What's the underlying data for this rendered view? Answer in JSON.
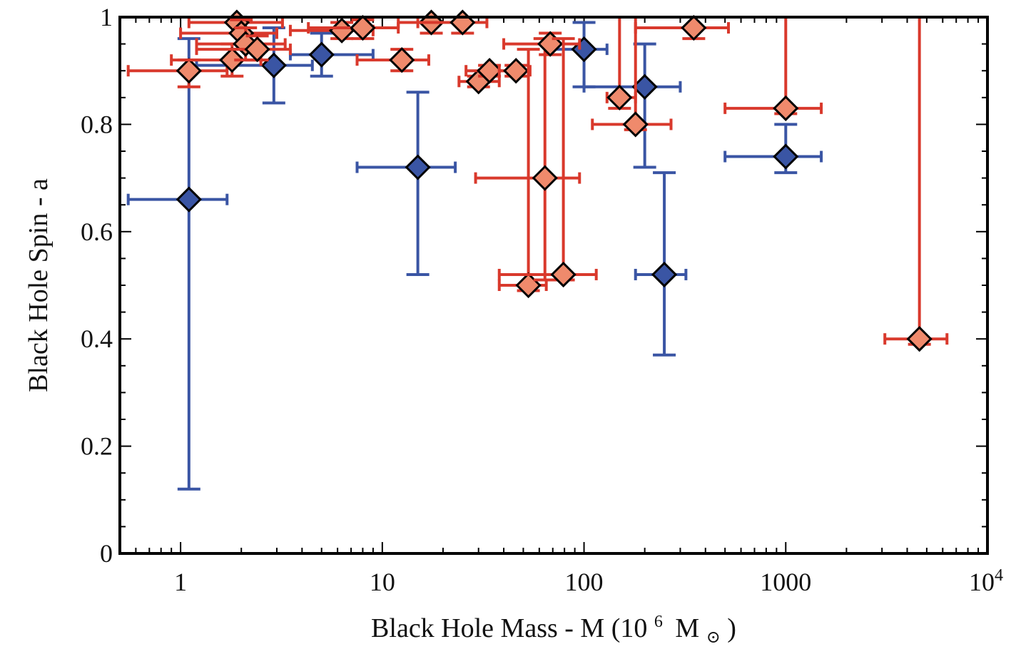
{
  "chart_data": {
    "type": "scatter",
    "title": "",
    "xlabel": "Black Hole Mass - M (10",
    "xlabel_sup": "6",
    "xlabel_unit": "M",
    "xlabel_sun": "⊙",
    "xlabel_close": ")",
    "ylabel": "Black Hole Spin - a",
    "xscale": "log",
    "xlim": [
      0.5,
      10000
    ],
    "ylim": [
      0,
      1
    ],
    "x_ticks": [
      {
        "value": 1,
        "label": "1"
      },
      {
        "value": 10,
        "label": "10"
      },
      {
        "value": 100,
        "label": "100"
      },
      {
        "value": 1000,
        "label": "1000"
      }
    ],
    "x_tick_last": {
      "value": 10000,
      "base": "10",
      "exp": "4"
    },
    "y_ticks": [
      {
        "value": 0,
        "label": "0"
      },
      {
        "value": 0.2,
        "label": "0.2"
      },
      {
        "value": 0.4,
        "label": "0.4"
      },
      {
        "value": 0.6,
        "label": "0.6"
      },
      {
        "value": 0.8,
        "label": "0.8"
      },
      {
        "value": 1,
        "label": "1"
      }
    ],
    "colors": {
      "red_err": "#d9392c",
      "red_fill": "#ef8a6c",
      "blue_err": "#3a55a4",
      "blue_fill": "#3a55a4"
    },
    "series": [
      {
        "name": "blue",
        "points": [
          {
            "x": 1.1,
            "y": 0.66,
            "xlo": 0.55,
            "xhi": 1.7,
            "ylo": 0.12,
            "yhi": 0.96
          },
          {
            "x": 2.9,
            "y": 0.91,
            "xlo": 1.2,
            "xhi": 4.5,
            "ylo": 0.84,
            "yhi": 0.98
          },
          {
            "x": 5.0,
            "y": 0.93,
            "xlo": 3.5,
            "xhi": 9.0,
            "ylo": 0.89,
            "yhi": 0.97
          },
          {
            "x": 15,
            "y": 0.72,
            "xlo": 7.5,
            "xhi": 23,
            "ylo": 0.52,
            "yhi": 0.86
          },
          {
            "x": 100,
            "y": 0.94,
            "xlo": 65,
            "xhi": 130,
            "ylo": 0.87,
            "yhi": 0.99
          },
          {
            "x": 200,
            "y": 0.87,
            "xlo": 100,
            "xhi": 300,
            "ylo": 0.72,
            "yhi": 0.95
          },
          {
            "x": 250,
            "y": 0.52,
            "xlo": 180,
            "xhi": 320,
            "ylo": 0.37,
            "yhi": 0.71
          },
          {
            "x": 1000,
            "y": 0.74,
            "xlo": 500,
            "xhi": 1500,
            "ylo": 0.71,
            "yhi": 0.8
          }
        ]
      },
      {
        "name": "red",
        "points": [
          {
            "x": 1.1,
            "y": 0.9,
            "xlo": 0.55,
            "xhi": 1.7,
            "ylo": 0.87,
            "yhi": 0.92
          },
          {
            "x": 1.8,
            "y": 0.92,
            "xlo": 0.9,
            "xhi": 2.5,
            "ylo": 0.89,
            "yhi": 0.95
          },
          {
            "x": 1.9,
            "y": 0.99,
            "xlo": 1.1,
            "xhi": 3.2,
            "ylo": 0.97,
            "yhi": 1.0
          },
          {
            "x": 2.0,
            "y": 0.97,
            "xlo": 1.0,
            "xhi": 3.0,
            "ylo": 0.94,
            "yhi": 0.995
          },
          {
            "x": 2.1,
            "y": 0.95,
            "xlo": 1.2,
            "xhi": 3.3,
            "ylo": 0.92,
            "yhi": 0.98
          },
          {
            "x": 2.4,
            "y": 0.94,
            "xlo": 1.2,
            "xhi": 3.5,
            "ylo": 0.92,
            "yhi": 0.965
          },
          {
            "x": 6.3,
            "y": 0.975,
            "xlo": 3.5,
            "xhi": 9.0,
            "ylo": 0.96,
            "yhi": 0.99
          },
          {
            "x": 8.0,
            "y": 0.98,
            "xlo": 4.3,
            "xhi": 12,
            "ylo": 0.96,
            "yhi": 0.995
          },
          {
            "x": 12.5,
            "y": 0.92,
            "xlo": 7.5,
            "xhi": 17,
            "ylo": 0.9,
            "yhi": 0.94
          },
          {
            "x": 17.5,
            "y": 0.99,
            "xlo": 12,
            "xhi": 24,
            "ylo": 0.97,
            "yhi": 1.0
          },
          {
            "x": 25,
            "y": 0.99,
            "xlo": 15,
            "xhi": 33,
            "ylo": 0.97,
            "yhi": 1.0
          },
          {
            "x": 30,
            "y": 0.88,
            "xlo": 24,
            "xhi": 38,
            "ylo": 0.87,
            "yhi": 0.89
          },
          {
            "x": 34,
            "y": 0.9,
            "xlo": 26,
            "xhi": 42,
            "ylo": 0.89,
            "yhi": 0.91
          },
          {
            "x": 46,
            "y": 0.9,
            "xlo": 38,
            "xhi": 54,
            "ylo": 0.89,
            "yhi": 0.91
          },
          {
            "x": 53,
            "y": 0.5,
            "xlo": 38,
            "xhi": 65,
            "ylo": 0.49,
            "yhi": 0.94
          },
          {
            "x": 64,
            "y": 0.7,
            "xlo": 29,
            "xhi": 95,
            "ylo": 0.51,
            "yhi": 0.96
          },
          {
            "x": 68,
            "y": 0.95,
            "xlo": 40,
            "xhi": 95,
            "ylo": 0.93,
            "yhi": 0.97
          },
          {
            "x": 79,
            "y": 0.52,
            "xlo": 38,
            "xhi": 115,
            "ylo": 0.51,
            "yhi": 0.96
          },
          {
            "x": 150,
            "y": 0.85,
            "xlo": 130,
            "xhi": 180,
            "ylo": 0.83,
            "yhi": 1.0
          },
          {
            "x": 180,
            "y": 0.8,
            "xlo": 110,
            "xhi": 270,
            "ylo": 0.79,
            "yhi": 1.0
          },
          {
            "x": 350,
            "y": 0.98,
            "xlo": 180,
            "xhi": 520,
            "ylo": 0.96,
            "yhi": 1.0
          },
          {
            "x": 1000,
            "y": 0.83,
            "xlo": 500,
            "xhi": 1500,
            "ylo": 0.82,
            "yhi": 1.0
          },
          {
            "x": 4600,
            "y": 0.4,
            "xlo": 3100,
            "xhi": 6300,
            "ylo": 0.39,
            "yhi": 1.0
          }
        ]
      }
    ]
  }
}
